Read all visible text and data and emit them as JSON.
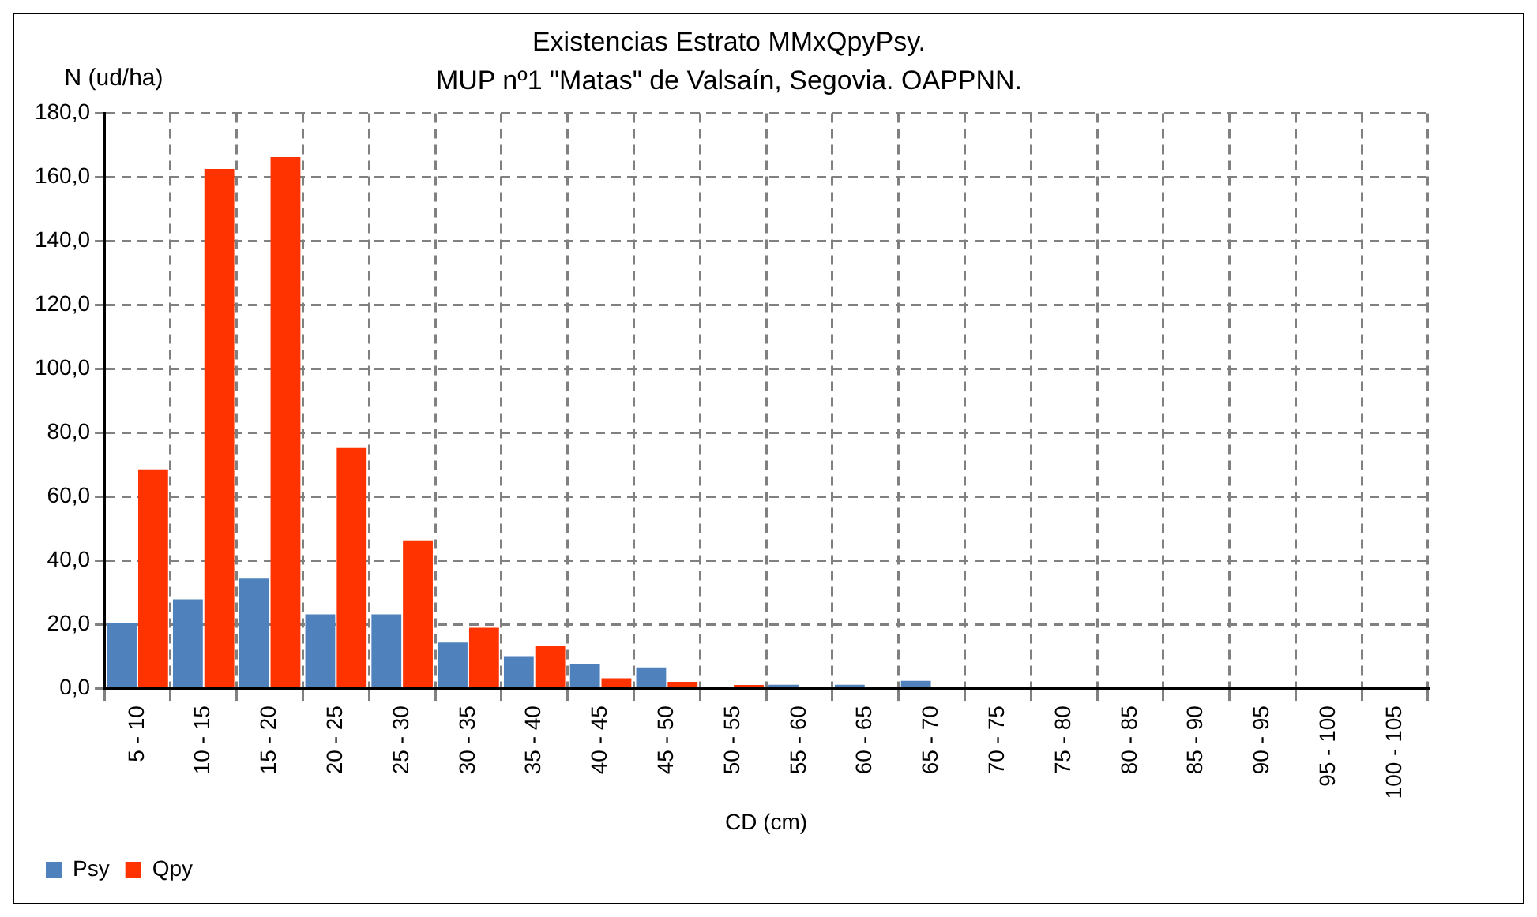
{
  "chart_data": {
    "type": "bar",
    "title": "Existencias Estrato MMxQpyPsy.",
    "subtitle": "MUP nº1 \"Matas\" de Valsaín, Segovia. OAPPNN.",
    "xlabel": "CD (cm)",
    "ylabel": "N (ud/ha)",
    "categories": [
      "5 - 10",
      "10 - 15",
      "15 - 20",
      "20 - 25",
      "25 - 30",
      "30 - 35",
      "35 - 40",
      "40 - 45",
      "45 - 50",
      "50 - 55",
      "55 - 60",
      "60 - 65",
      "65 - 70",
      "70 - 75",
      "75 - 80",
      "80 - 85",
      "85 - 90",
      "90 - 95",
      "95 - 100",
      "100 - 105"
    ],
    "series": [
      {
        "name": "Psy",
        "color": "#4f81bd",
        "values": [
          20.5,
          27.8,
          34.3,
          23.1,
          23.1,
          14.3,
          10.0,
          7.6,
          6.5,
          0,
          1.1,
          1.1,
          2.3,
          0,
          0,
          0,
          0,
          0,
          0,
          0
        ]
      },
      {
        "name": "Qpy",
        "color": "#ff3300",
        "values": [
          68.5,
          162.6,
          166.3,
          75.2,
          46.3,
          18.9,
          13.3,
          3.1,
          2.0,
          1.0,
          0,
          0,
          0,
          0,
          0,
          0,
          0,
          0,
          0,
          0
        ]
      }
    ],
    "ylim": [
      0,
      180
    ],
    "yticks": [
      {
        "value": 0,
        "label": "0,0"
      },
      {
        "value": 20,
        "label": "20,0"
      },
      {
        "value": 40,
        "label": "40,0"
      },
      {
        "value": 60,
        "label": "60,0"
      },
      {
        "value": 80,
        "label": "80,0"
      },
      {
        "value": 100,
        "label": "100,0"
      },
      {
        "value": 120,
        "label": "120,0"
      },
      {
        "value": 140,
        "label": "140,0"
      },
      {
        "value": 160,
        "label": "160,0"
      },
      {
        "value": 180,
        "label": "180,0"
      }
    ],
    "grid": true,
    "legend": "bottom left"
  }
}
